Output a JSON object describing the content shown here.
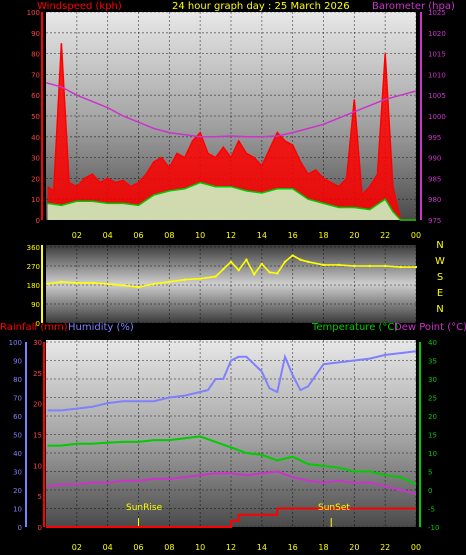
{
  "header": {
    "title": "24 hour graph day : 25 March 2026",
    "left_label": "Windspeed (kph)",
    "right_label": "Barometer (hpa)"
  },
  "lower_header": {
    "rain_label": "Rainfall (mm)",
    "humidity_label": "Humidity (%)",
    "temp_label": "Temperature (°C)",
    "dew_label": "Dew Point (°C)"
  },
  "compass_letters": [
    "N",
    "W",
    "S",
    "E",
    "N"
  ],
  "annotations": {
    "sunrise": "SunRise",
    "sunset": "SunSet"
  },
  "colors": {
    "wind_gust": "#ff0000",
    "wind_avg_outer": "#00c800",
    "wind_avg_inner": "#ccffcc",
    "barometer": "#cc33cc",
    "direction": "#ffff00",
    "humidity": "#8080ff",
    "temperature": "#00cc00",
    "dewpoint": "#cc33cc",
    "rainfall": "#ff0000",
    "title": "#ffff00"
  },
  "chart_data": [
    {
      "type": "line",
      "panel": "wind-barometer",
      "title": "24 hour graph day : 25 March 2026",
      "x_ticks": [
        "02",
        "04",
        "06",
        "08",
        "10",
        "12",
        "14",
        "16",
        "18",
        "20",
        "22",
        "00"
      ],
      "y_left": {
        "label": "Windspeed (kph)",
        "ticks": [
          "0",
          "10",
          "20",
          "30",
          "40",
          "50",
          "60",
          "70",
          "80",
          "90",
          "100"
        ],
        "ylim": [
          0,
          100
        ]
      },
      "y_right": {
        "label": "Barometer (hpa)",
        "ticks": [
          "975",
          "980",
          "985",
          "990",
          "995",
          "1000",
          "1005",
          "1010",
          "1015",
          "1020",
          "1025"
        ],
        "ylim": [
          975,
          1025
        ]
      },
      "grid": true,
      "series": [
        {
          "name": "Windspeed (kph)",
          "role": "gust",
          "x": [
            0.1,
            0.5,
            1,
            1.5,
            2,
            2.5,
            3,
            3.5,
            4,
            4.5,
            5,
            5.5,
            6,
            6.5,
            7,
            7.5,
            8,
            8.5,
            9,
            9.5,
            10,
            10.5,
            11,
            11.5,
            12,
            12.5,
            13,
            13.5,
            14,
            14.5,
            15,
            15.5,
            16,
            16.5,
            17,
            17.5,
            18,
            18.5,
            19,
            19.5,
            20,
            20.5,
            21,
            21.5,
            22,
            22.5,
            23,
            24
          ],
          "values": [
            16,
            14,
            85,
            18,
            16,
            20,
            22,
            18,
            20,
            18,
            19,
            16,
            18,
            22,
            28,
            30,
            25,
            32,
            30,
            38,
            42,
            32,
            30,
            35,
            30,
            38,
            32,
            30,
            26,
            34,
            42,
            38,
            36,
            28,
            22,
            24,
            20,
            18,
            16,
            20,
            58,
            12,
            16,
            22,
            80,
            16,
            0,
            0
          ]
        },
        {
          "name": "Average speed",
          "role": "average",
          "x": [
            0.1,
            1,
            2,
            3,
            4,
            5,
            6,
            7,
            8,
            9,
            10,
            11,
            12,
            13,
            14,
            15,
            16,
            17,
            18,
            19,
            20,
            21,
            22,
            22.5,
            23,
            24
          ],
          "values": [
            8,
            7,
            9,
            9,
            8,
            8,
            7,
            12,
            14,
            15,
            18,
            16,
            16,
            14,
            13,
            15,
            15,
            10,
            8,
            6,
            6,
            5,
            10,
            4,
            0,
            0
          ]
        },
        {
          "name": "Barometer (hpa)",
          "x": [
            0,
            1,
            2,
            3,
            4,
            5,
            6,
            7,
            8,
            9,
            10,
            11,
            12,
            13,
            14,
            15,
            16,
            17,
            18,
            19,
            20,
            21,
            22,
            23,
            24
          ],
          "values": [
            1008,
            1007,
            1005,
            1003.5,
            1002,
            1000,
            998.5,
            997,
            996,
            995.5,
            995,
            995,
            995.2,
            995,
            995,
            995.2,
            996,
            997,
            998,
            999.5,
            1001,
            1002.5,
            1004,
            1005,
            1006
          ]
        }
      ]
    },
    {
      "type": "scatter",
      "panel": "wind-direction",
      "x_ticks": [
        "02",
        "04",
        "06",
        "08",
        "10",
        "12",
        "14",
        "16",
        "18",
        "20",
        "22",
        "00"
      ],
      "y_ticks": [
        "0",
        "90",
        "180",
        "270",
        "360"
      ],
      "ylim": [
        0,
        360
      ],
      "grid": true,
      "series": [
        {
          "name": "Wind direction",
          "x": [
            0.1,
            1,
            2,
            3,
            4,
            5,
            6,
            7,
            8,
            9,
            10,
            11,
            11.5,
            12,
            12.5,
            13,
            13.5,
            14,
            14.5,
            15,
            15.5,
            16,
            16.5,
            17,
            18,
            19,
            20,
            21,
            22,
            23,
            24
          ],
          "values": [
            185,
            195,
            190,
            190,
            185,
            178,
            170,
            185,
            195,
            205,
            210,
            220,
            255,
            290,
            250,
            300,
            230,
            280,
            240,
            235,
            290,
            320,
            300,
            290,
            275,
            275,
            270,
            270,
            270,
            265,
            265
          ]
        }
      ]
    },
    {
      "type": "line",
      "panel": "temperature-humidity-rain",
      "x_ticks": [
        "02",
        "04",
        "06",
        "08",
        "10",
        "12",
        "14",
        "16",
        "18",
        "20",
        "22",
        "00"
      ],
      "y_left_humidity": {
        "label": "Humidity (%)",
        "ticks": [
          "0",
          "10",
          "20",
          "30",
          "40",
          "50",
          "60",
          "70",
          "80",
          "90",
          "100"
        ],
        "ylim": [
          0,
          100
        ]
      },
      "y_left_rain": {
        "label": "Rainfall (mm)",
        "ticks": [
          "0",
          "5",
          "10",
          "15",
          "20",
          "25",
          "30"
        ],
        "ylim": [
          0,
          30
        ]
      },
      "y_right": {
        "label": "Temperature (°C)",
        "ticks": [
          "-10",
          "-5",
          "0",
          "5",
          "10",
          "15",
          "20",
          "25",
          "30",
          "35",
          "40"
        ],
        "ylim": [
          -10,
          40
        ]
      },
      "annotations": [
        {
          "label": "SunRise",
          "x": 6
        },
        {
          "label": "SunSet",
          "x": 18.5
        }
      ],
      "grid": true,
      "series": [
        {
          "name": "Humidity (%)",
          "x": [
            0.1,
            1,
            2,
            3,
            4,
            5,
            6,
            7,
            8,
            9,
            10,
            10.5,
            11,
            11.5,
            12,
            12.5,
            13,
            13.5,
            14,
            14.5,
            15,
            15.5,
            16,
            16.5,
            17,
            18,
            19,
            20,
            21,
            22,
            23,
            24
          ],
          "values": [
            63,
            63,
            64,
            65,
            67,
            68,
            68,
            68,
            70,
            71,
            73,
            74,
            80,
            80,
            90,
            92,
            92,
            88,
            84,
            75,
            73,
            92,
            82,
            74,
            76,
            88,
            89,
            90,
            91,
            93,
            94,
            95
          ]
        },
        {
          "name": "Temperature (°C)",
          "x": [
            0.1,
            1,
            2,
            3,
            4,
            5,
            6,
            7,
            8,
            9,
            10,
            11,
            12,
            13,
            14,
            15,
            16,
            17,
            18,
            19,
            20,
            21,
            22,
            23,
            24
          ],
          "values": [
            12,
            12,
            12.5,
            12.5,
            12.8,
            13,
            13,
            13.5,
            13.5,
            14,
            14.5,
            13,
            11.5,
            10,
            9.5,
            8,
            9,
            7,
            6.5,
            6,
            5,
            5,
            4,
            3.5,
            1.5
          ]
        },
        {
          "name": "Dew Point (°C)",
          "x": [
            0.1,
            1,
            2,
            3,
            4,
            5,
            6,
            7,
            8,
            9,
            10,
            11,
            12,
            13,
            14,
            15,
            16,
            17,
            18,
            19,
            20,
            21,
            22,
            23,
            24
          ],
          "values": [
            1,
            1.5,
            1.5,
            2,
            2,
            2.5,
            2.5,
            3,
            3,
            3.5,
            4,
            4.5,
            4.5,
            4,
            4.5,
            5,
            3.5,
            2.5,
            2,
            2.5,
            2,
            2,
            1,
            0,
            -1
          ]
        },
        {
          "name": "Rainfall (mm)",
          "x": [
            0,
            11.5,
            12,
            12.5,
            14.5,
            15,
            24
          ],
          "values": [
            0,
            0,
            1,
            2,
            2,
            3,
            3
          ]
        }
      ]
    }
  ]
}
